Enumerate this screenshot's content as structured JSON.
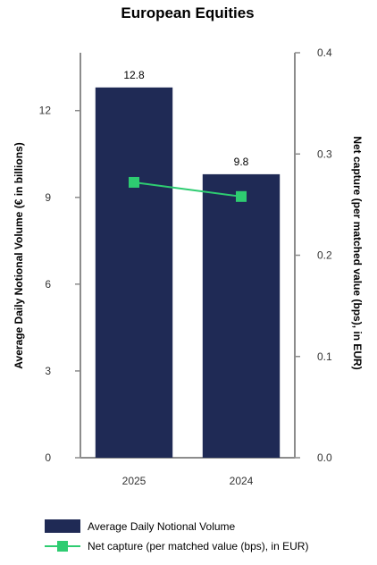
{
  "chart_data": {
    "type": "bar",
    "title": "European Equities",
    "categories": [
      "2025",
      "2024"
    ],
    "series": [
      {
        "name": "Average Daily Notional Volume",
        "type": "bar",
        "axis": "left",
        "color": "#1f2a55",
        "values": [
          12.8,
          9.8
        ],
        "data_labels": [
          "12.8",
          "9.8"
        ]
      },
      {
        "name": "Net capture (per matched value (bps), in EUR)",
        "type": "line",
        "axis": "right",
        "color": "#2ecc71",
        "values": [
          0.272,
          0.258
        ]
      }
    ],
    "ylabel": "Average Daily Notional Volume (€ in billions)",
    "y2label": "Net capture (per matched value (bps), in EUR)",
    "ylim": [
      0,
      14
    ],
    "yticks": [
      "0",
      "3",
      "6",
      "9",
      "12"
    ],
    "y2lim": [
      0,
      0.4
    ],
    "y2ticks": [
      "0.0",
      "0.1",
      "0.2",
      "0.3",
      "0.4"
    ],
    "grid": false,
    "legend_position": "bottom-left"
  }
}
